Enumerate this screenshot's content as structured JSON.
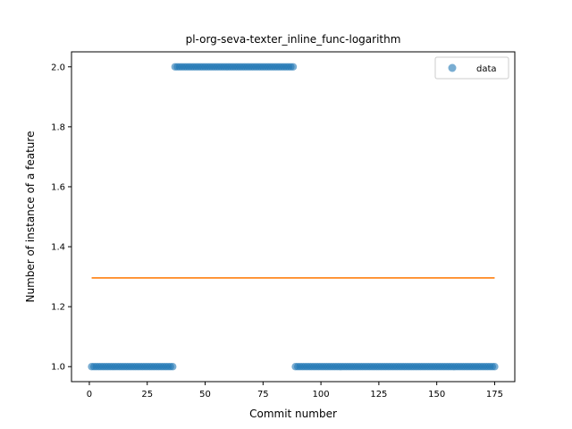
{
  "chart_data": {
    "type": "scatter",
    "title": "pl-org-seva-texter_inline_func-logarithm",
    "xlabel": "Commit number",
    "ylabel": "Number of instance of a feature",
    "xlim": [
      -7.7,
      183.7
    ],
    "ylim": [
      0.95,
      2.05
    ],
    "xticks": [
      0,
      25,
      50,
      75,
      100,
      125,
      150,
      175
    ],
    "yticks": [
      1.0,
      1.2,
      1.4,
      1.6,
      1.8,
      2.0
    ],
    "ytick_labels": [
      "1.0",
      "1.2",
      "1.4",
      "1.6",
      "1.8",
      "2.0"
    ],
    "legend": {
      "position": "top-right",
      "entries": [
        "data"
      ]
    },
    "grid": false,
    "colors": {
      "points": "#1f77b4",
      "line": "#ff7f0e"
    },
    "series": [
      {
        "name": "data",
        "kind": "points",
        "segments": [
          {
            "x_start": 1,
            "x_end": 36,
            "y": 1
          },
          {
            "x_start": 37,
            "x_end": 88,
            "y": 2
          },
          {
            "x_start": 89,
            "x_end": 175,
            "y": 1
          }
        ]
      },
      {
        "kind": "line",
        "x": [
          1,
          175
        ],
        "y": [
          1.296,
          1.296
        ]
      }
    ]
  }
}
